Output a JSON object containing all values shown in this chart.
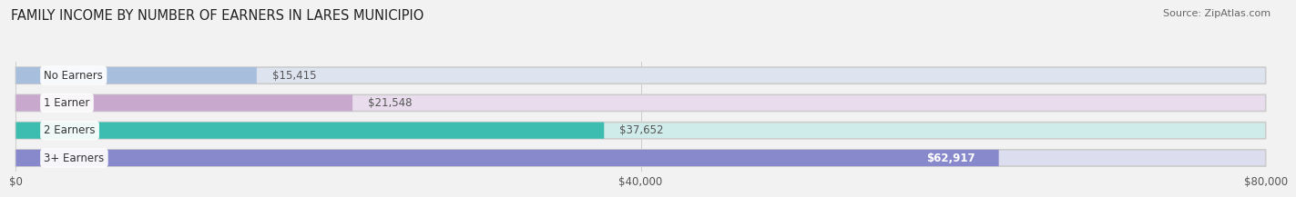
{
  "title": "FAMILY INCOME BY NUMBER OF EARNERS IN LARES MUNICIPIO",
  "source": "Source: ZipAtlas.com",
  "categories": [
    "No Earners",
    "1 Earner",
    "2 Earners",
    "3+ Earners"
  ],
  "values": [
    15415,
    21548,
    37652,
    62917
  ],
  "value_labels": [
    "$15,415",
    "$21,548",
    "$37,652",
    "$62,917"
  ],
  "value_inside": [
    false,
    false,
    false,
    true
  ],
  "bar_colors": [
    "#a8bedd",
    "#c8a8cc",
    "#3dbdb0",
    "#8888cc"
  ],
  "bg_colors": [
    "#dde4f0",
    "#e8dced",
    "#d0ecea",
    "#ddddf0"
  ],
  "xmax": 80000,
  "xticks": [
    0,
    40000,
    80000
  ],
  "xticklabels": [
    "$0",
    "$40,000",
    "$80,000"
  ],
  "title_fontsize": 10.5,
  "source_fontsize": 8,
  "label_fontsize": 8.5,
  "bar_label_fontsize": 8.5,
  "background_color": "#f2f2f2"
}
